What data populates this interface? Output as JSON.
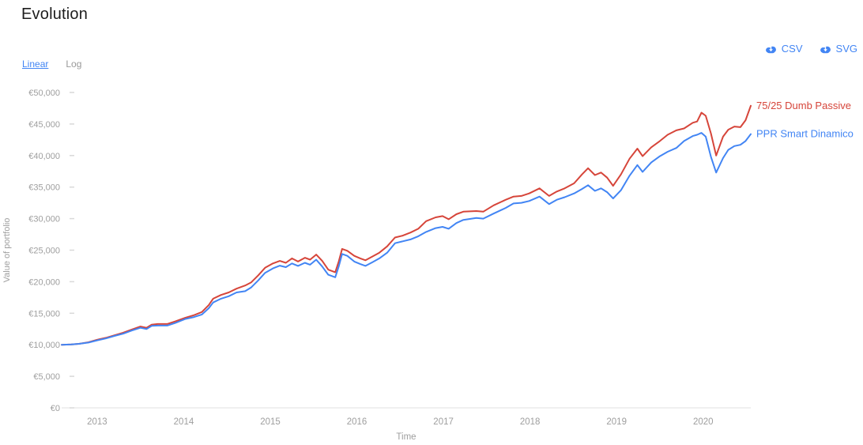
{
  "page": {
    "title": "Evolution"
  },
  "scale_toggle": {
    "linear_label": "Linear",
    "log_label": "Log",
    "active": "Linear"
  },
  "export": {
    "csv_label": "CSV",
    "svg_label": "SVG",
    "icon": "cloud-download-icon"
  },
  "colors": {
    "accent_blue": "#4285f4",
    "series_red": "#d6453a",
    "series_blue": "#4285f4",
    "axis_text": "#9e9e9e",
    "axis_line": "#e0e0e0",
    "tick_dash": "#d9d9d9",
    "inactive_text": "#999999",
    "title_text": "#1d1d1d"
  },
  "chart_data": {
    "type": "line",
    "title": "Evolution",
    "xlabel": "Time",
    "ylabel": "Value of portfolio",
    "xlim": [
      2012.59,
      2020.55
    ],
    "ylim": [
      0,
      50000
    ],
    "grid": false,
    "legend_position": "end-of-line",
    "x_ticks": [
      {
        "value": 2013,
        "label": "2013"
      },
      {
        "value": 2014,
        "label": "2014"
      },
      {
        "value": 2015,
        "label": "2015"
      },
      {
        "value": 2016,
        "label": "2016"
      },
      {
        "value": 2017,
        "label": "2017"
      },
      {
        "value": 2018,
        "label": "2018"
      },
      {
        "value": 2019,
        "label": "2019"
      },
      {
        "value": 2020,
        "label": "2020"
      }
    ],
    "y_ticks": [
      {
        "value": 0,
        "label": "€0"
      },
      {
        "value": 5000,
        "label": "€5,000"
      },
      {
        "value": 10000,
        "label": "€10,000"
      },
      {
        "value": 15000,
        "label": "€15,000"
      },
      {
        "value": 20000,
        "label": "€20,000"
      },
      {
        "value": 25000,
        "label": "€25,000"
      },
      {
        "value": 30000,
        "label": "€30,000"
      },
      {
        "value": 35000,
        "label": "€35,000"
      },
      {
        "value": 40000,
        "label": "€40,000"
      },
      {
        "value": 45000,
        "label": "€45,000"
      },
      {
        "value": 50000,
        "label": "€50,000"
      }
    ],
    "x": [
      2012.59,
      2012.7,
      2012.79,
      2012.9,
      2013.0,
      2013.1,
      2013.2,
      2013.3,
      2013.4,
      2013.5,
      2013.57,
      2013.63,
      2013.7,
      2013.81,
      2013.9,
      2014.02,
      2014.12,
      2014.21,
      2014.29,
      2014.34,
      2014.43,
      2014.52,
      2014.61,
      2014.71,
      2014.78,
      2014.86,
      2014.94,
      2015.03,
      2015.11,
      2015.18,
      2015.25,
      2015.32,
      2015.4,
      2015.46,
      2015.53,
      2015.6,
      2015.67,
      2015.75,
      2015.79,
      2015.83,
      2015.89,
      2015.97,
      2016.04,
      2016.1,
      2016.18,
      2016.26,
      2016.35,
      2016.44,
      2016.53,
      2016.62,
      2016.71,
      2016.8,
      2016.91,
      2016.99,
      2017.06,
      2017.15,
      2017.23,
      2017.38,
      2017.46,
      2017.58,
      2017.72,
      2017.81,
      2017.9,
      2017.99,
      2018.11,
      2018.22,
      2018.31,
      2018.4,
      2018.51,
      2018.6,
      2018.67,
      2018.75,
      2018.82,
      2018.89,
      2018.96,
      2019.05,
      2019.15,
      2019.24,
      2019.3,
      2019.4,
      2019.5,
      2019.59,
      2019.69,
      2019.78,
      2019.88,
      2019.93,
      2019.98,
      2020.03,
      2020.09,
      2020.15,
      2020.23,
      2020.29,
      2020.36,
      2020.43,
      2020.49,
      2020.55
    ],
    "series": [
      {
        "name": "75/25 Dumb Passive",
        "color": "#d6453a",
        "values": [
          10000,
          10050,
          10150,
          10400,
          10800,
          11100,
          11500,
          11900,
          12400,
          12900,
          12700,
          13200,
          13300,
          13300,
          13700,
          14300,
          14700,
          15200,
          16300,
          17300,
          17900,
          18300,
          18900,
          19400,
          19900,
          21000,
          22200,
          22900,
          23300,
          23000,
          23700,
          23200,
          23800,
          23500,
          24300,
          23300,
          21900,
          21500,
          23200,
          25200,
          24900,
          24100,
          23700,
          23400,
          24000,
          24600,
          25600,
          27000,
          27300,
          27800,
          28400,
          29600,
          30200,
          30400,
          29900,
          30700,
          31100,
          31200,
          31100,
          32100,
          33000,
          33500,
          33600,
          34000,
          34800,
          33600,
          34300,
          34800,
          35600,
          37000,
          38000,
          36900,
          37300,
          36500,
          35200,
          37000,
          39500,
          41100,
          39900,
          41300,
          42300,
          43300,
          44000,
          44300,
          45200,
          45400,
          46800,
          46300,
          43500,
          40000,
          43000,
          44100,
          44600,
          44500,
          45600,
          47900
        ]
      },
      {
        "name": "PPR Smart Dinamico",
        "color": "#4285f4",
        "values": [
          10000,
          10050,
          10150,
          10350,
          10700,
          11000,
          11400,
          11750,
          12250,
          12700,
          12500,
          13000,
          13050,
          13050,
          13450,
          14100,
          14400,
          14800,
          15800,
          16700,
          17300,
          17700,
          18300,
          18500,
          19100,
          20200,
          21400,
          22100,
          22550,
          22300,
          22900,
          22500,
          23000,
          22700,
          23500,
          22400,
          21100,
          20700,
          22400,
          24400,
          24100,
          23200,
          22800,
          22500,
          23100,
          23700,
          24600,
          26100,
          26400,
          26700,
          27200,
          27900,
          28500,
          28700,
          28400,
          29300,
          29800,
          30100,
          30000,
          30800,
          31700,
          32400,
          32500,
          32800,
          33500,
          32300,
          33000,
          33400,
          34000,
          34700,
          35300,
          34400,
          34800,
          34200,
          33200,
          34500,
          36800,
          38500,
          37400,
          38900,
          39900,
          40600,
          41200,
          42300,
          43100,
          43300,
          43600,
          43000,
          39800,
          37300,
          39600,
          40900,
          41500,
          41700,
          42300,
          43400
        ]
      }
    ]
  }
}
